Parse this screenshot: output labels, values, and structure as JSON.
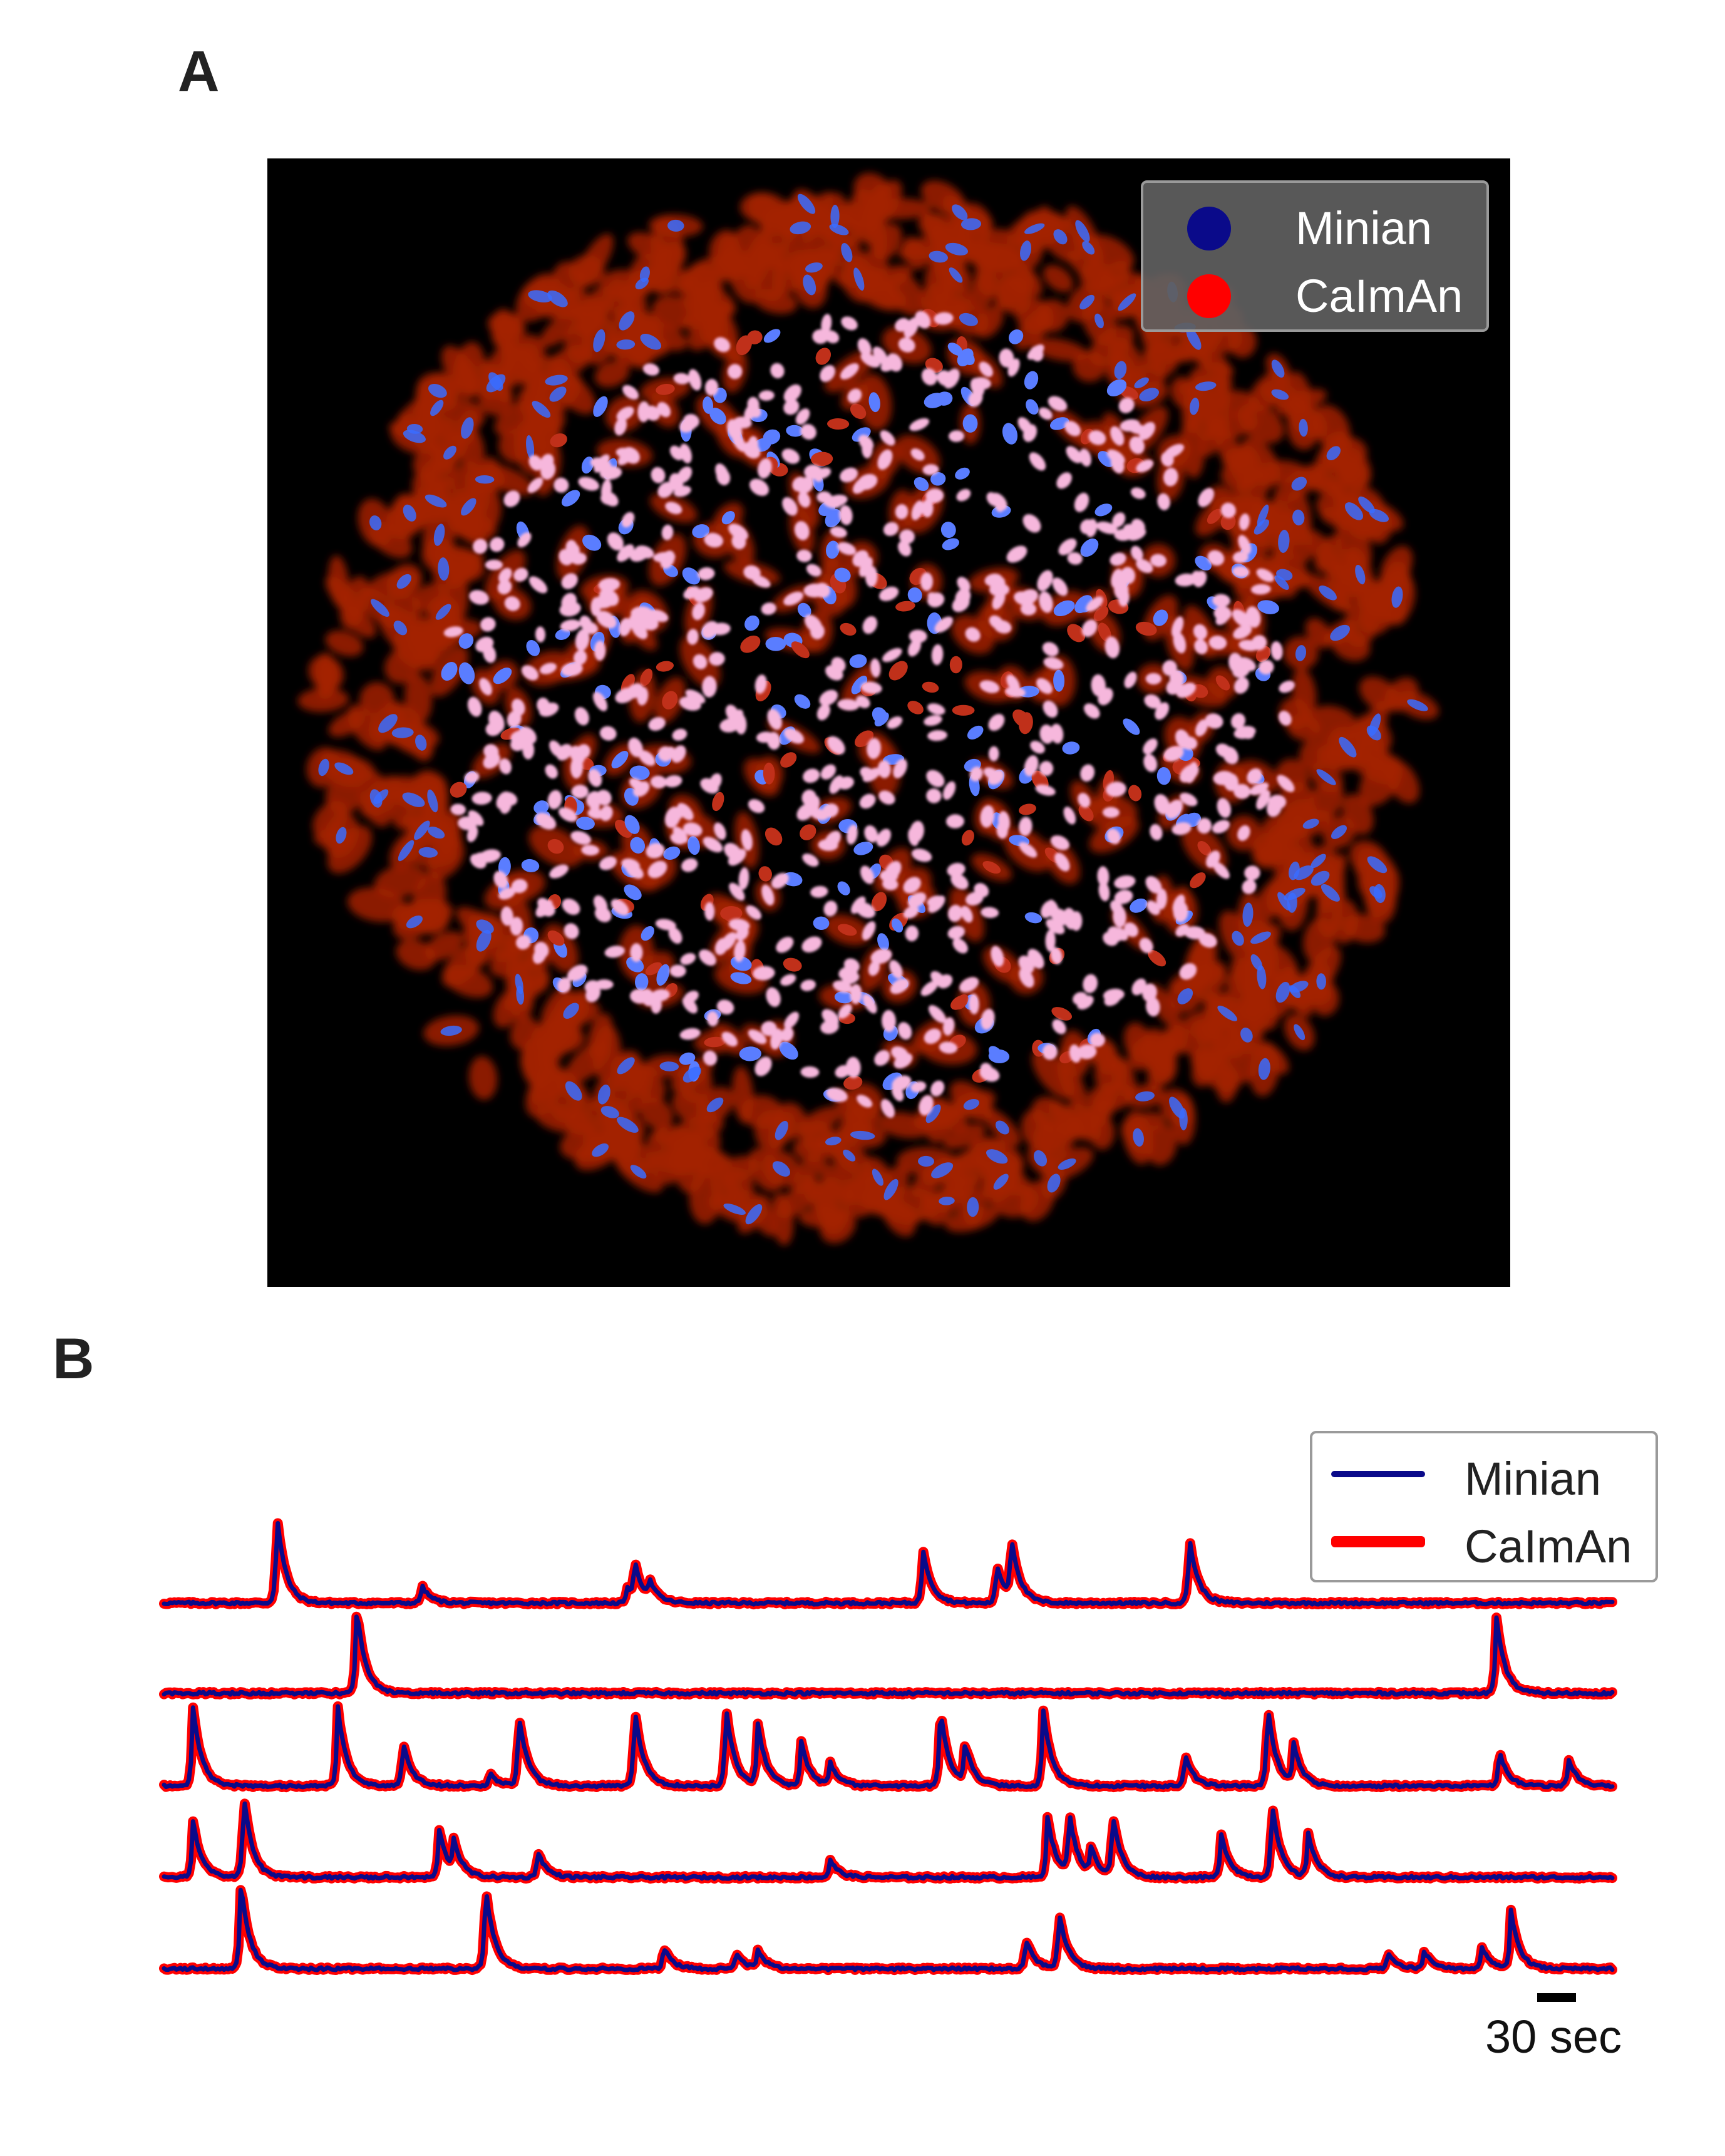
{
  "panels": {
    "a": {
      "label": "A"
    },
    "b": {
      "label": "B"
    }
  },
  "legend_a": {
    "items": [
      {
        "label": "Minian",
        "color": "#0a0a8a"
      },
      {
        "label": "CaImAn",
        "color": "#ff0000"
      }
    ]
  },
  "legend_b": {
    "items": [
      {
        "label": "Minian",
        "color": "#0a0a8a"
      },
      {
        "label": "CaImAn",
        "color": "#ff0000"
      }
    ]
  },
  "scalebar": {
    "label": "30 sec"
  },
  "colors": {
    "minian": "#0a0a8a",
    "caiman": "#ff0000",
    "overlap": "#f4b2d8",
    "background": "#000000"
  },
  "chart_data": {
    "type": "line",
    "series_names": [
      "Minian",
      "CaImAn"
    ],
    "x_range": [
      0,
      1
    ],
    "traces": [
      {
        "peaks": [
          [
            0.078,
            1.0
          ],
          [
            0.178,
            0.2
          ],
          [
            0.32,
            0.18
          ],
          [
            0.325,
            0.4
          ],
          [
            0.335,
            0.2
          ],
          [
            0.524,
            0.62
          ],
          [
            0.575,
            0.45
          ],
          [
            0.585,
            0.68
          ],
          [
            0.708,
            0.75
          ]
        ]
      },
      {
        "peaks": [
          [
            0.133,
            0.98
          ],
          [
            0.92,
            0.85
          ]
        ]
      },
      {
        "peaks": [
          [
            0.02,
            0.9
          ],
          [
            0.12,
            0.9
          ],
          [
            0.165,
            0.5
          ],
          [
            0.225,
            0.15
          ],
          [
            0.245,
            0.82
          ],
          [
            0.325,
            0.9
          ],
          [
            0.388,
            0.9
          ],
          [
            0.41,
            0.7
          ],
          [
            0.44,
            0.5
          ],
          [
            0.46,
            0.25
          ],
          [
            0.536,
            0.9
          ],
          [
            0.553,
            0.45
          ],
          [
            0.607,
            0.88
          ],
          [
            0.705,
            0.35
          ],
          [
            0.762,
            0.92
          ],
          [
            0.78,
            0.45
          ],
          [
            0.922,
            0.4
          ],
          [
            0.97,
            0.3
          ]
        ]
      },
      {
        "peaks": [
          [
            0.02,
            0.65
          ],
          [
            0.055,
            0.95
          ],
          [
            0.19,
            0.55
          ],
          [
            0.2,
            0.35
          ],
          [
            0.258,
            0.3
          ],
          [
            0.46,
            0.2
          ],
          [
            0.61,
            0.7
          ],
          [
            0.625,
            0.7
          ],
          [
            0.64,
            0.3
          ],
          [
            0.655,
            0.7
          ],
          [
            0.73,
            0.5
          ],
          [
            0.765,
            0.85
          ],
          [
            0.79,
            0.5
          ]
        ]
      },
      {
        "peaks": [
          [
            0.053,
            1.0
          ],
          [
            0.222,
            0.95
          ],
          [
            0.345,
            0.25
          ],
          [
            0.395,
            0.18
          ],
          [
            0.41,
            0.2
          ],
          [
            0.595,
            0.35
          ],
          [
            0.618,
            0.65
          ],
          [
            0.845,
            0.2
          ],
          [
            0.87,
            0.2
          ],
          [
            0.91,
            0.25
          ],
          [
            0.93,
            0.65
          ]
        ]
      }
    ]
  }
}
